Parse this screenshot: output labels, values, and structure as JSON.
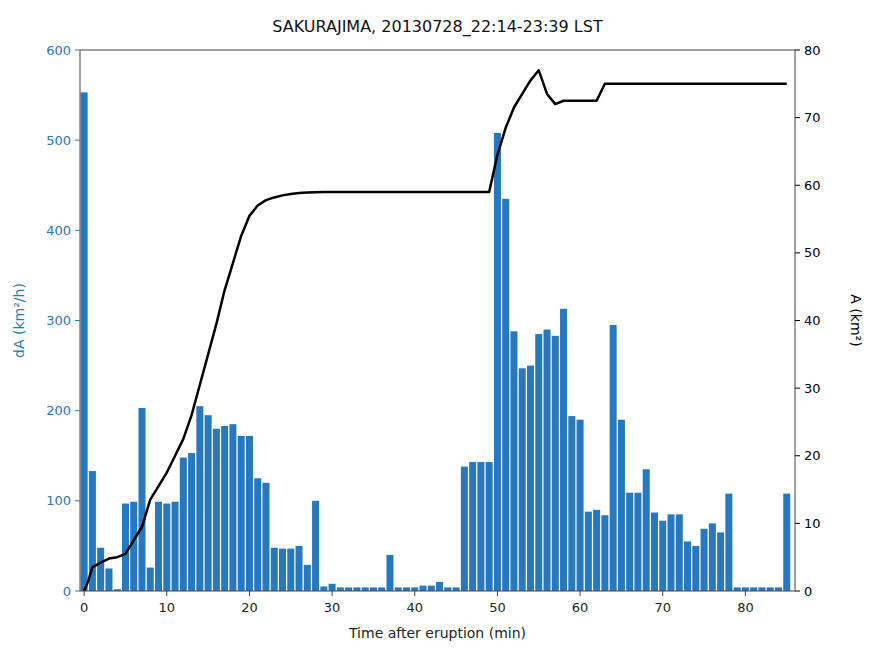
{
  "chart_data": {
    "type": "bar",
    "title": "SAKURAJIMA, 20130728_22:14-23:39 LST",
    "x_label": "Time after eruption (min)",
    "y_label": "dA (km²/h)",
    "y2_label": "A (km²)",
    "xlim": [
      -0.5,
      86
    ],
    "xticks": [
      0,
      10,
      20,
      30,
      40,
      50,
      60,
      70,
      80
    ],
    "ylim": [
      0,
      600
    ],
    "yticks": [
      0,
      100,
      200,
      300,
      400,
      500,
      600
    ],
    "y2lim": [
      0,
      80
    ],
    "y2ticks": [
      0,
      10,
      20,
      30,
      40,
      50,
      60,
      70,
      80
    ],
    "series": [
      {
        "type": "bar",
        "color": "#2878BE",
        "x": [
          0,
          1,
          2,
          3,
          4,
          5,
          6,
          7,
          8,
          9,
          10,
          11,
          12,
          13,
          14,
          15,
          16,
          17,
          18,
          19,
          20,
          21,
          22,
          23,
          24,
          25,
          26,
          27,
          28,
          29,
          30,
          31,
          32,
          33,
          34,
          35,
          36,
          37,
          38,
          39,
          40,
          41,
          42,
          43,
          44,
          45,
          46,
          47,
          48,
          49,
          50,
          51,
          52,
          53,
          54,
          55,
          56,
          57,
          58,
          59,
          60,
          61,
          62,
          63,
          64,
          65,
          66,
          67,
          68,
          69,
          70,
          71,
          72,
          73,
          74,
          75,
          76,
          77,
          78,
          79,
          80,
          81,
          82,
          83,
          84,
          85
        ],
        "values": [
          553,
          133,
          48,
          25,
          2,
          97,
          99,
          203,
          26,
          99,
          97,
          99,
          148,
          153,
          205,
          195,
          180,
          183,
          185,
          172,
          172,
          125,
          120,
          48,
          47,
          47,
          50,
          29,
          100,
          5,
          8,
          4,
          4,
          4,
          4,
          4,
          4,
          40,
          4,
          4,
          4,
          6,
          6,
          10,
          4,
          4,
          138,
          143,
          143,
          143,
          508,
          435,
          288,
          247,
          250,
          285,
          290,
          283,
          313,
          194,
          190,
          88,
          90,
          84,
          295,
          190,
          109,
          109,
          135,
          87,
          78,
          85,
          85,
          55,
          50,
          69,
          75,
          65,
          108,
          4,
          4,
          4,
          4,
          4,
          4,
          108
        ]
      },
      {
        "type": "line",
        "color": "#000000",
        "axis": "y2",
        "x": [
          0,
          0.5,
          1,
          2,
          3,
          4,
          5,
          6,
          7,
          8,
          9,
          10,
          11,
          12,
          13,
          14,
          15,
          16,
          17,
          18,
          19,
          20,
          21,
          22,
          23,
          24,
          25,
          26,
          27,
          28,
          29,
          30,
          31,
          32,
          33,
          34,
          35,
          36,
          37,
          38,
          39,
          40,
          41,
          42,
          43,
          44,
          45,
          46,
          47,
          48,
          49,
          50,
          51,
          52,
          53,
          54,
          55,
          56,
          57,
          58,
          59,
          60,
          61,
          62,
          63,
          64,
          65,
          66,
          67,
          68,
          69,
          70,
          71,
          72,
          73,
          74,
          75,
          76,
          77,
          78,
          79,
          80,
          81,
          82,
          83,
          84,
          85
        ],
        "values": [
          0,
          1.5,
          3.5,
          4.2,
          4.8,
          5.0,
          5.5,
          7.5,
          9.5,
          13.5,
          15.5,
          17.5,
          20.0,
          22.5,
          26.0,
          30.5,
          35.0,
          39.5,
          44.5,
          48.5,
          52.5,
          55.5,
          57.0,
          57.8,
          58.2,
          58.5,
          58.7,
          58.85,
          58.93,
          58.97,
          58.99,
          59.0,
          59.0,
          59.0,
          59.0,
          59.0,
          59.0,
          59.0,
          59.0,
          59.0,
          59.0,
          59.0,
          59.0,
          59.0,
          59.0,
          59.0,
          59.0,
          59.0,
          59.0,
          59.0,
          59.0,
          64.5,
          68.5,
          71.5,
          73.5,
          75.5,
          77.0,
          73.5,
          72.0,
          72.5,
          72.5,
          72.5,
          72.5,
          72.5,
          75.0,
          75.0,
          75.0,
          75.0,
          75.0,
          75.0,
          75.0,
          75.0,
          75.0,
          75.0,
          75.0,
          75.0,
          75.0,
          75.0,
          75.0,
          75.0,
          75.0,
          75.0,
          75.0,
          75.0,
          75.0,
          75.0,
          75.0
        ]
      }
    ]
  }
}
